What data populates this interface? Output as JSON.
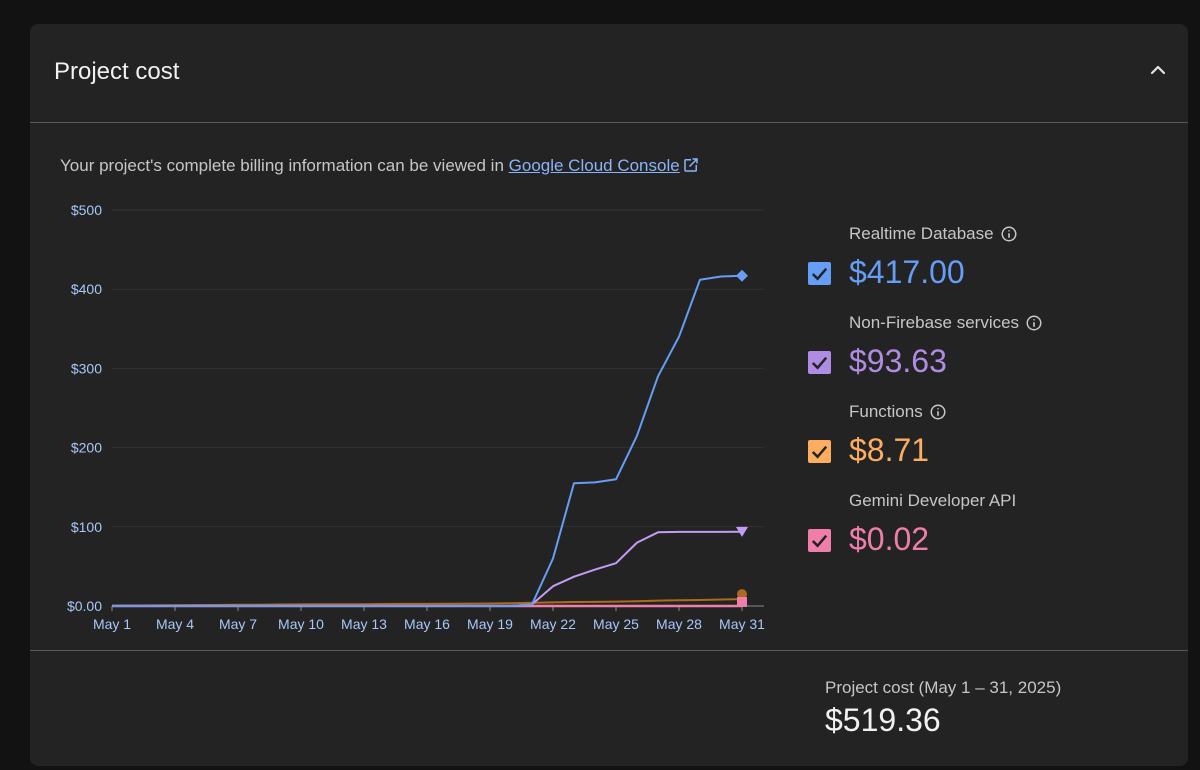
{
  "header": {
    "title": "Project cost"
  },
  "info": {
    "prefix": "Your project's complete billing information can be viewed in ",
    "link_text": "Google Cloud Console"
  },
  "legend": [
    {
      "name": "Realtime Database",
      "value": "$417.00",
      "color": "#669df6",
      "has_info": true
    },
    {
      "name": "Non-Firebase services",
      "value": "$93.63",
      "color": "#af8ce3",
      "has_info": true
    },
    {
      "name": "Functions",
      "value": "$8.71",
      "color": "#fcad5f",
      "has_info": true
    },
    {
      "name": "Gemini Developer API",
      "value": "$0.02",
      "color": "#f07eaa",
      "has_info": false
    }
  ],
  "total": {
    "label": "Project cost (May 1 – 31, 2025)",
    "value": "$519.36"
  },
  "chart_data": {
    "type": "line",
    "x": [
      "May 1",
      "May 2",
      "May 3",
      "May 4",
      "May 5",
      "May 6",
      "May 7",
      "May 8",
      "May 9",
      "May 10",
      "May 11",
      "May 12",
      "May 13",
      "May 14",
      "May 15",
      "May 16",
      "May 17",
      "May 18",
      "May 19",
      "May 20",
      "May 21",
      "May 22",
      "May 23",
      "May 24",
      "May 25",
      "May 26",
      "May 27",
      "May 28",
      "May 29",
      "May 30",
      "May 31"
    ],
    "x_tick_labels": [
      "May 1",
      "May 4",
      "May 7",
      "May 10",
      "May 13",
      "May 16",
      "May 19",
      "May 22",
      "May 25",
      "May 28",
      "May 31"
    ],
    "y_tick_labels": [
      "$0.00",
      "$100",
      "$200",
      "$300",
      "$400",
      "$500"
    ],
    "ylim": [
      0,
      500
    ],
    "grid": true,
    "series": [
      {
        "name": "Realtime Database",
        "color": "#669df6",
        "values": [
          0,
          0,
          0,
          0,
          0,
          0,
          0,
          0,
          0,
          0,
          0,
          0,
          0,
          0,
          0,
          0,
          0,
          0,
          0,
          0,
          2,
          60,
          155,
          156,
          160,
          215,
          290,
          340,
          412,
          416,
          417
        ]
      },
      {
        "name": "Non-Firebase services",
        "color": "#c39cf6",
        "values": [
          0,
          0,
          0,
          0,
          0,
          0,
          0,
          0,
          0,
          0,
          0,
          0,
          0,
          0,
          0,
          0,
          0,
          0,
          0,
          0,
          2,
          25,
          37,
          46,
          54,
          80,
          93,
          93.5,
          93.6,
          93.6,
          93.63
        ]
      },
      {
        "name": "Functions",
        "color": "#b06a1f",
        "values": [
          0.5,
          0.6,
          0.8,
          1,
          1.1,
          1.2,
          1.5,
          1.7,
          1.9,
          2,
          2.1,
          2.2,
          2.3,
          2.5,
          2.6,
          2.7,
          2.8,
          3,
          3.2,
          3.5,
          4,
          4.5,
          5,
          5.2,
          5.5,
          6,
          6.8,
          7.2,
          7.6,
          8.2,
          8.71
        ]
      },
      {
        "name": "Gemini Developer API",
        "color": "#f07eaa",
        "values": [
          0,
          0,
          0,
          0,
          0,
          0,
          0,
          0,
          0,
          0,
          0,
          0,
          0,
          0,
          0,
          0,
          0,
          0,
          0,
          0,
          0,
          0,
          0,
          0,
          0,
          0,
          0,
          0,
          0,
          0,
          0.02
        ]
      }
    ]
  }
}
